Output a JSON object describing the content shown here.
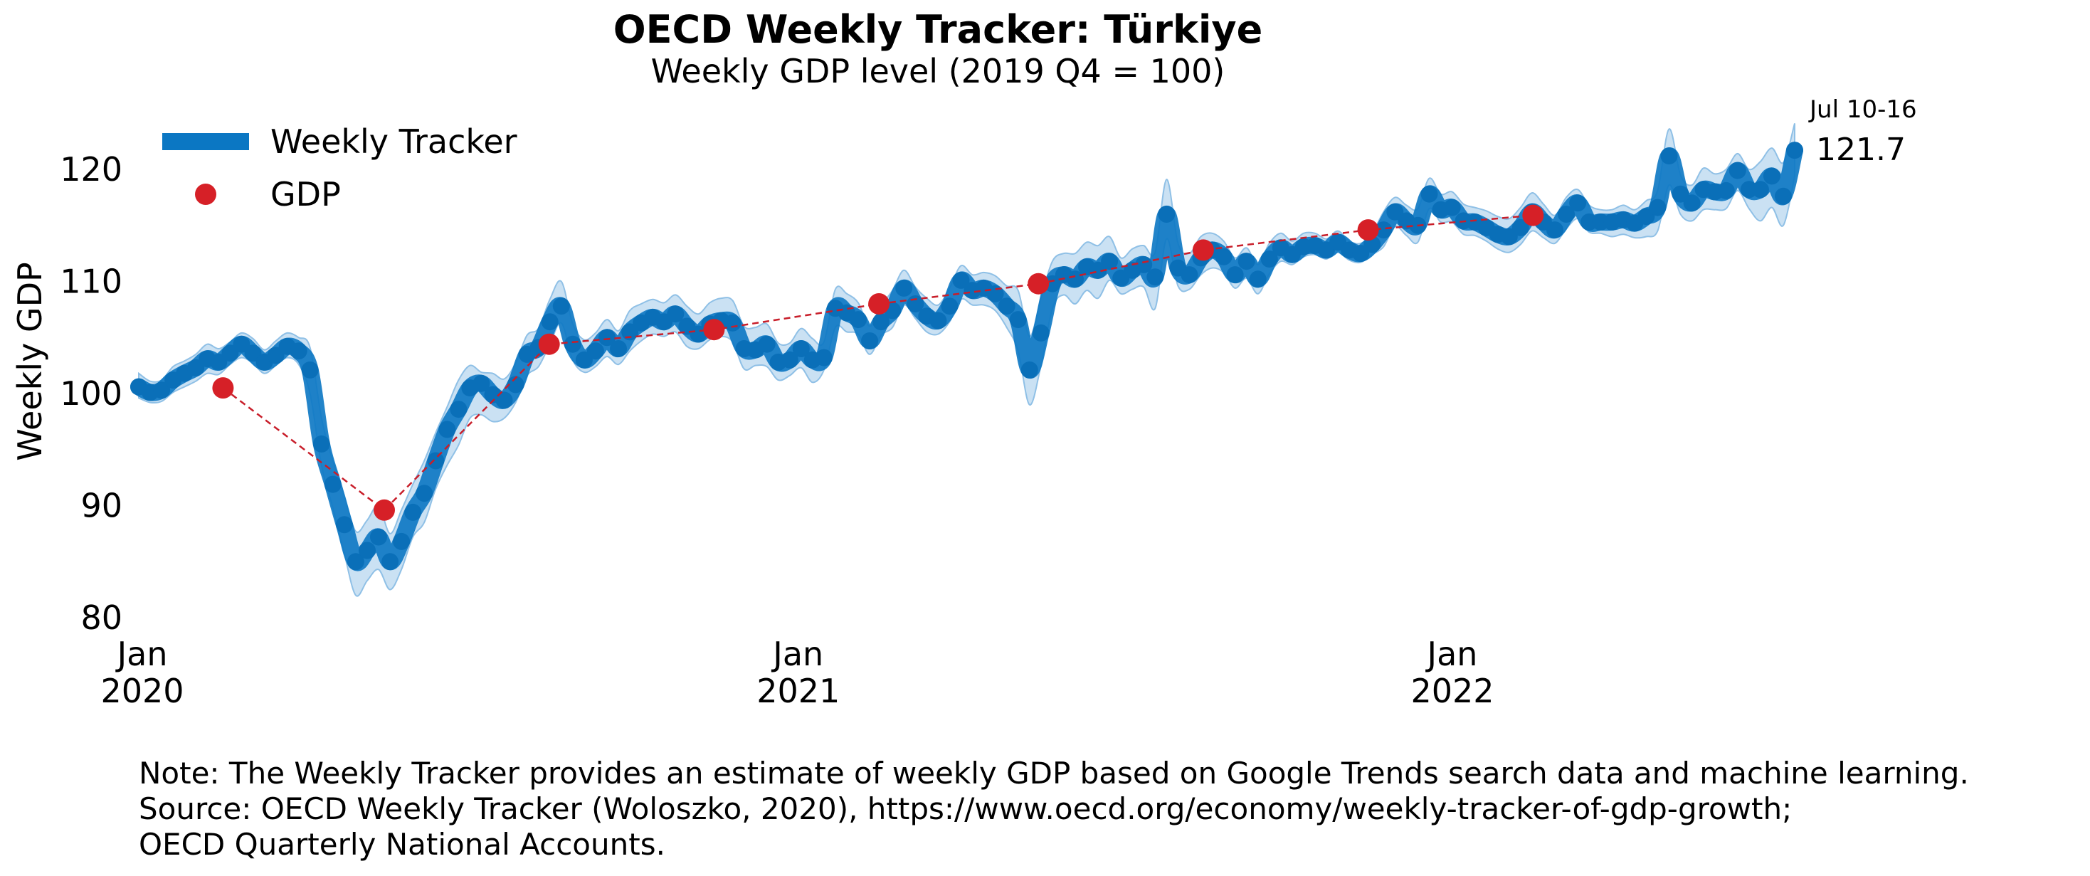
{
  "colors": {
    "tracker": "#0b77c3",
    "band": "#b3d4ee",
    "gdp": "#d62027",
    "gdp_line": "#c81e2a"
  },
  "chart_data": {
    "type": "line",
    "title": "OECD Weekly Tracker: Türkiye",
    "subtitle": "Weekly GDP level (2019 Q4 = 100)",
    "ylabel": "Weekly GDP",
    "xlabel": "",
    "ylim": [
      80,
      124
    ],
    "yticks": [
      "80",
      "90",
      "100",
      "110",
      "120"
    ],
    "xticks": [
      {
        "month": "Jan",
        "year": "2020",
        "date": "2020-01-01"
      },
      {
        "month": "Jan",
        "year": "2021",
        "date": "2021-01-01"
      },
      {
        "month": "Jan",
        "year": "2022",
        "date": "2022-01-01"
      }
    ],
    "legend": {
      "placement": "top-left",
      "entries": [
        "Weekly Tracker",
        "GDP"
      ]
    },
    "grid": false,
    "last_annotation": {
      "label": "Jul 10-16",
      "value": "121.7"
    },
    "weekly_tracker": {
      "x_start": "2019-12-30",
      "x_end": "2022-07-11",
      "values": [
        100.6,
        100.1,
        100.3,
        101.2,
        101.8,
        102.3,
        103.1,
        102.8,
        103.6,
        104.4,
        103.6,
        102.8,
        103.4,
        104.2,
        103.8,
        102.1,
        95.5,
        91.9,
        88.3,
        85.0,
        86.0,
        87.2,
        85.0,
        86.8,
        89.4,
        91.1,
        94.0,
        96.8,
        98.6,
        100.5,
        100.9,
        99.9,
        99.4,
        100.8,
        103.5,
        104.1,
        106.4,
        107.8,
        104.4,
        103.0,
        103.8,
        105.0,
        104.0,
        105.5,
        106.3,
        106.8,
        106.4,
        107.1,
        106.0,
        105.3,
        106.2,
        106.5,
        106.3,
        104.0,
        103.9,
        104.4,
        102.8,
        103.0,
        104.0,
        103.0,
        103.2,
        107.6,
        107.2,
        106.6,
        104.7,
        106.4,
        107.4,
        109.4,
        108.0,
        106.9,
        106.5,
        107.8,
        110.1,
        109.2,
        109.4,
        108.9,
        107.8,
        106.6,
        102.1,
        105.4,
        109.8,
        110.6,
        110.2,
        111.3,
        111.0,
        111.8,
        110.3,
        111.0,
        111.5,
        110.4,
        116.0,
        111.2,
        110.6,
        112.1,
        112.8,
        112.2,
        110.6,
        111.8,
        110.2,
        112.0,
        113.0,
        112.4,
        113.1,
        113.2,
        112.8,
        113.5,
        112.8,
        112.5,
        113.3,
        114.6,
        116.2,
        115.4,
        115.0,
        117.8,
        116.4,
        116.6,
        115.4,
        115.3,
        114.8,
        114.2,
        114.0,
        114.8,
        116.2,
        115.3,
        114.6,
        116.0,
        117.0,
        115.3,
        115.3,
        115.3,
        115.5,
        115.2,
        115.8,
        116.6,
        121.2,
        117.8,
        117.0,
        118.2,
        118.0,
        118.1,
        119.9,
        118.2,
        118.2,
        119.4,
        117.6,
        121.7
      ],
      "lower": [
        99.6,
        99.2,
        99.3,
        100.1,
        100.6,
        101.1,
        101.8,
        101.7,
        102.6,
        103.2,
        102.7,
        101.8,
        102.5,
        103.2,
        102.6,
        100.0,
        93.6,
        89.8,
        85.7,
        82.0,
        83.3,
        84.3,
        82.5,
        84.3,
        87.2,
        88.5,
        91.5,
        93.6,
        95.4,
        97.8,
        98.1,
        97.5,
        97.8,
        99.2,
        101.6,
        102.4,
        104.4,
        106.3,
        103.0,
        101.9,
        102.4,
        103.3,
        102.6,
        103.8,
        104.7,
        105.3,
        105.1,
        105.5,
        104.2,
        104.0,
        104.8,
        105.1,
        104.6,
        102.2,
        102.5,
        102.4,
        101.2,
        101.6,
        102.3,
        101.0,
        102.1,
        105.9,
        105.5,
        105.3,
        103.5,
        105.2,
        105.9,
        107.9,
        106.7,
        105.5,
        105.3,
        106.4,
        108.4,
        107.9,
        107.9,
        107.4,
        105.9,
        103.8,
        99.0,
        102.5,
        107.6,
        108.8,
        108.0,
        109.2,
        108.5,
        110.1,
        108.9,
        109.3,
        109.5,
        107.6,
        113.8,
        109.6,
        109.3,
        110.6,
        111.2,
        110.8,
        109.4,
        110.3,
        108.9,
        110.7,
        111.8,
        111.5,
        112.2,
        112.4,
        112.0,
        112.6,
        111.9,
        111.7,
        112.4,
        113.1,
        114.9,
        114.1,
        113.5,
        116.5,
        115.3,
        115.3,
        114.2,
        114.1,
        113.6,
        112.9,
        112.6,
        113.3,
        114.5,
        113.9,
        113.4,
        114.7,
        115.6,
        114.4,
        114.3,
        114.0,
        114.2,
        113.9,
        114.0,
        114.5,
        118.6,
        116.0,
        115.4,
        116.4,
        116.4,
        116.5,
        118.1,
        116.5,
        115.4,
        116.6,
        115.0,
        119.4
      ],
      "upper": [
        101.8,
        101.1,
        101.2,
        102.4,
        102.9,
        103.5,
        104.4,
        104.0,
        104.6,
        105.4,
        104.9,
        103.9,
        104.7,
        105.4,
        105.0,
        104.1,
        97.8,
        94.0,
        90.9,
        87.7,
        88.7,
        90.0,
        87.5,
        89.6,
        91.9,
        94.0,
        96.5,
        98.8,
        101.2,
        102.5,
        101.9,
        101.8,
        101.3,
        102.7,
        105.2,
        105.8,
        108.4,
        110.0,
        106.2,
        104.8,
        105.4,
        106.6,
        105.6,
        107.4,
        108.0,
        108.4,
        108.1,
        108.8,
        107.8,
        107.1,
        108.1,
        108.5,
        108.3,
        106.0,
        105.9,
        106.2,
        104.5,
        104.5,
        105.8,
        104.9,
        104.6,
        109.3,
        108.9,
        108.1,
        106.0,
        107.8,
        109.2,
        111.0,
        109.5,
        108.5,
        107.9,
        109.4,
        111.4,
        110.6,
        110.8,
        110.5,
        109.6,
        109.2,
        105.1,
        108.5,
        111.8,
        112.5,
        112.5,
        113.5,
        113.2,
        114.0,
        112.1,
        112.9,
        113.2,
        112.6,
        119.1,
        113.4,
        112.5,
        114.0,
        114.3,
        113.6,
        112.1,
        113.0,
        111.5,
        113.4,
        114.3,
        113.6,
        114.3,
        114.3,
        113.8,
        114.5,
        113.6,
        113.4,
        114.3,
        116.2,
        117.5,
        116.8,
        116.5,
        119.2,
        117.8,
        118.0,
        116.9,
        116.6,
        116.3,
        115.8,
        115.6,
        116.6,
        117.9,
        116.9,
        115.9,
        117.5,
        118.2,
        116.8,
        116.4,
        116.4,
        116.8,
        116.4,
        117.2,
        118.1,
        123.6,
        119.5,
        118.6,
        120.1,
        119.6,
        120.0,
        121.4,
        120.0,
        120.7,
        121.9,
        120.6,
        124.1
      ]
    },
    "gdp": {
      "points": [
        {
          "x": "2020-02-15",
          "y": 100.5
        },
        {
          "x": "2020-05-15",
          "y": 89.6
        },
        {
          "x": "2020-08-15",
          "y": 104.4
        },
        {
          "x": "2020-11-15",
          "y": 105.7
        },
        {
          "x": "2021-02-15",
          "y": 108.0
        },
        {
          "x": "2021-05-15",
          "y": 109.8
        },
        {
          "x": "2021-08-15",
          "y": 112.8
        },
        {
          "x": "2021-11-15",
          "y": 114.6
        },
        {
          "x": "2022-02-15",
          "y": 115.9
        }
      ]
    }
  },
  "footer": {
    "note": "Note: The Weekly Tracker provides an estimate of weekly GDP based on Google Trends search data and machine learning.",
    "source_line1": "Source: OECD Weekly Tracker (Woloszko, 2020), https://www.oecd.org/economy/weekly-tracker-of-gdp-growth;",
    "source_line2": "OECD Quarterly National Accounts."
  }
}
